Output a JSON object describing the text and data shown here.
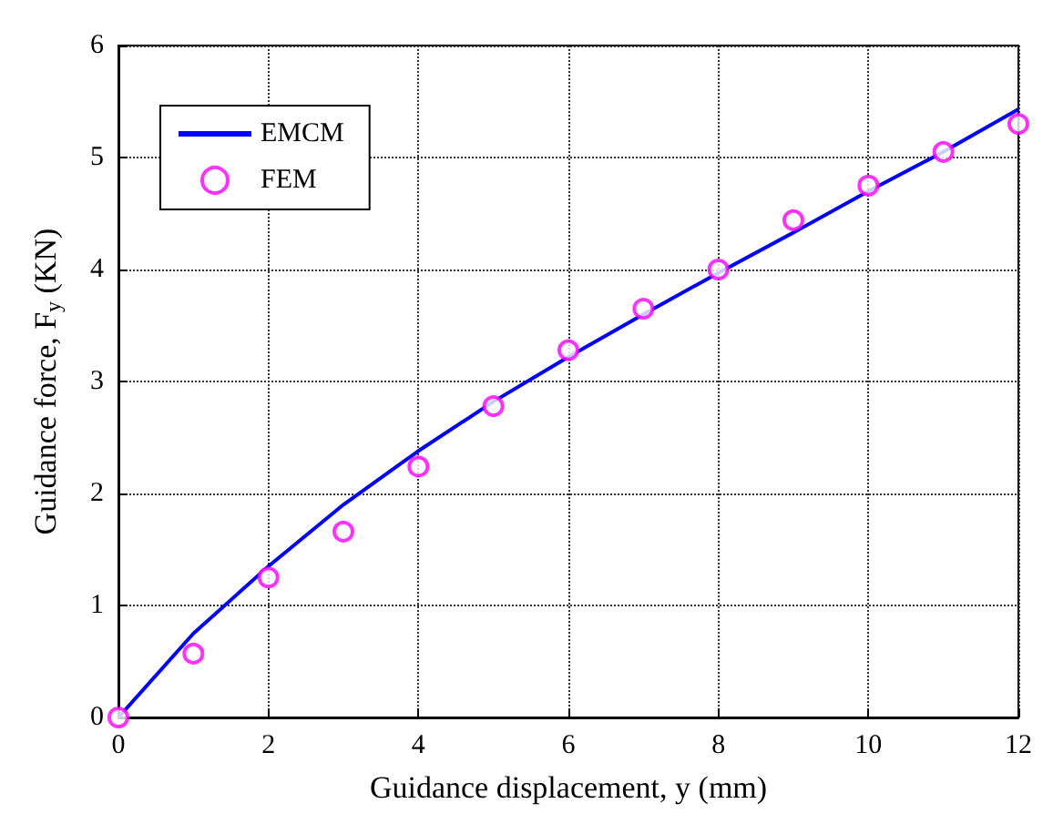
{
  "chart_data": {
    "type": "line",
    "xlabel": "Guidance displacement, y (mm)",
    "ylabel": "Guidance force, F$_{y}$ (KN)",
    "xlim": [
      0,
      12
    ],
    "xticks": [
      0,
      2,
      4,
      6,
      8,
      10,
      12
    ],
    "ylim": [
      0,
      6
    ],
    "yticks": [
      0,
      1,
      2,
      3,
      4,
      5,
      6
    ],
    "grid": true,
    "legend": "top left",
    "line_style": "solid",
    "series": [
      {
        "name": "EMCM",
        "type": "line",
        "marker": "none",
        "color": "#0000ff",
        "x": [
          0,
          1,
          2,
          3,
          4,
          5,
          6,
          7,
          8,
          9,
          10,
          11,
          12
        ],
        "values": [
          0,
          0.75,
          1.35,
          1.9,
          2.38,
          2.82,
          3.22,
          3.6,
          3.97,
          4.33,
          4.7,
          5.05,
          5.43
        ]
      },
      {
        "name": "FEM",
        "type": "scatter",
        "marker": "circle",
        "color": "#ff00ff",
        "x": [
          0,
          1,
          2,
          3,
          4,
          5,
          6,
          7,
          8,
          9,
          10,
          11,
          12
        ],
        "values": [
          0,
          0.57,
          1.25,
          1.66,
          2.24,
          2.78,
          3.28,
          3.65,
          4.0,
          4.44,
          4.75,
          5.05,
          5.3
        ]
      }
    ]
  }
}
